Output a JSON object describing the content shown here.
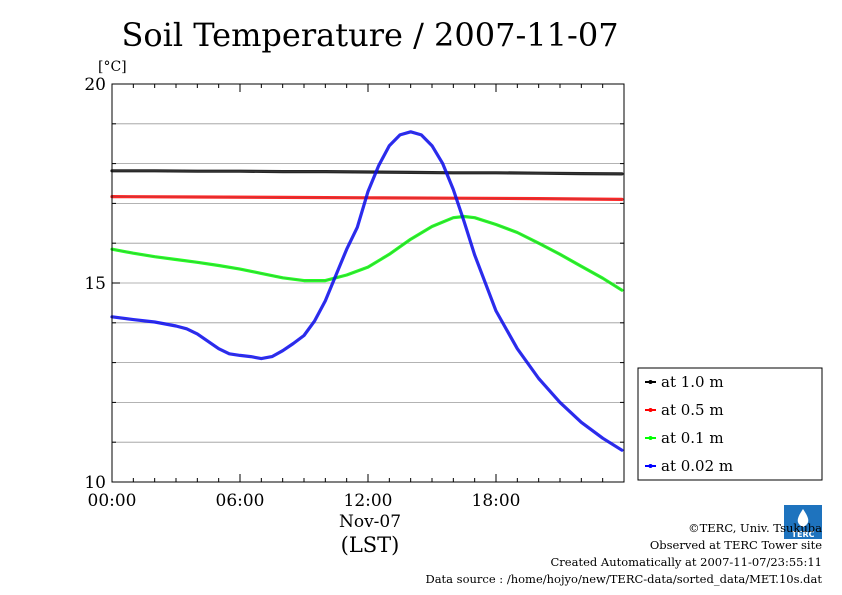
{
  "chart_data": {
    "type": "line",
    "title": "Soil Temperature / 2007-11-07",
    "ylabel": "[°C]",
    "ylim": [
      10,
      20
    ],
    "xlim": [
      0,
      24
    ],
    "yticks": [
      10,
      15,
      20
    ],
    "xticks": [
      {
        "x": 0,
        "label": "00:00"
      },
      {
        "x": 6,
        "label": "06:00"
      },
      {
        "x": 12,
        "label": "12:00"
      },
      {
        "x": 18,
        "label": "18:00"
      }
    ],
    "xdate_label": "Nov-07",
    "xunit_label": "(LST)",
    "grid": true,
    "legend_position": "right-bottom",
    "series": [
      {
        "name": "at 1.0 m",
        "color": "#000000",
        "x": [
          0,
          2,
          4,
          6,
          8,
          10,
          12,
          14,
          16,
          18,
          20,
          22,
          23.9
        ],
        "y": [
          17.82,
          17.82,
          17.81,
          17.81,
          17.8,
          17.8,
          17.79,
          17.78,
          17.77,
          17.77,
          17.76,
          17.75,
          17.74
        ]
      },
      {
        "name": "at 0.5 m",
        "color": "#ff0000",
        "x": [
          0,
          4,
          8,
          12,
          16,
          20,
          23.9
        ],
        "y": [
          17.17,
          17.16,
          17.15,
          17.14,
          17.13,
          17.12,
          17.1
        ]
      },
      {
        "name": "at 0.1 m",
        "color": "#00ff00",
        "x": [
          0,
          1,
          2,
          3,
          4,
          5,
          6,
          7,
          8,
          9,
          10,
          11,
          12,
          13,
          14,
          15,
          16,
          16.5,
          17,
          18,
          19,
          20,
          21,
          22,
          23,
          23.9
        ],
        "y": [
          15.85,
          15.75,
          15.66,
          15.59,
          15.52,
          15.44,
          15.35,
          15.24,
          15.13,
          15.06,
          15.06,
          15.2,
          15.4,
          15.72,
          16.1,
          16.42,
          16.64,
          16.67,
          16.64,
          16.47,
          16.27,
          16.0,
          15.72,
          15.42,
          15.12,
          14.82
        ]
      },
      {
        "name": "at 0.02 m",
        "color": "#0000ff",
        "x": [
          0,
          1,
          2,
          3,
          3.5,
          4,
          5,
          5.5,
          6,
          6.5,
          7,
          7.5,
          8,
          8.5,
          9,
          9.5,
          10,
          10.5,
          11,
          11.5,
          12,
          12.5,
          13,
          13.5,
          14,
          14.5,
          15,
          15.5,
          16,
          16.5,
          17,
          18,
          19,
          20,
          21,
          22,
          23,
          23.9
        ],
        "y": [
          14.15,
          14.08,
          14.02,
          13.92,
          13.85,
          13.72,
          13.35,
          13.22,
          13.18,
          13.15,
          13.1,
          13.15,
          13.3,
          13.48,
          13.68,
          14.05,
          14.55,
          15.2,
          15.85,
          16.4,
          17.3,
          17.95,
          18.45,
          18.72,
          18.8,
          18.72,
          18.45,
          18.0,
          17.35,
          16.55,
          15.7,
          14.3,
          13.35,
          12.6,
          12.0,
          11.5,
          11.1,
          10.8
        ]
      }
    ]
  },
  "footer": {
    "copyright": "©TERC, Univ. Tsukuba",
    "observed": "Observed at TERC Tower site",
    "created": "Created Automatically at 2007-11-07/23:55:11",
    "source": "Data source : /home/hojyo/new/TERC-data/sorted_data/MET.10s.dat",
    "logo_text": "TERC"
  }
}
